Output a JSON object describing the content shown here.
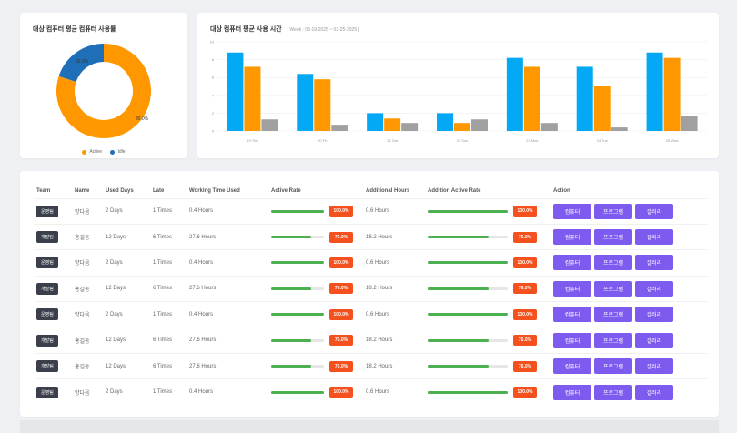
{
  "donut": {
    "title": "대상 컴퓨터 평균 컴퓨터 사용률",
    "active_label": "80.0%",
    "idle_label": "20.0%",
    "active_fraction": 0.8,
    "colors": {
      "active": "#ff9800",
      "idle": "#1e6fb8"
    },
    "legend": [
      {
        "name": "Active",
        "color": "#ff9800"
      },
      {
        "name": "Idle",
        "color": "#1e6fb8"
      }
    ]
  },
  "bars": {
    "title": "대상 컴퓨터 평균 사용 시간",
    "subtitle": "[ Week : 03-19-2025 ~ 03-25-2025 ]",
    "chart_data": {
      "type": "bar",
      "title": "대상 컴퓨터 평균 사용 시간",
      "categories": [
        "19 Thu",
        "20 Fri",
        "21 Sat",
        "22 Sun",
        "23 Mon",
        "24 Tue",
        "25 Wed"
      ],
      "ylim": [
        0,
        10
      ],
      "yticks": [
        "0",
        "2",
        "4",
        "6",
        "8",
        "10"
      ],
      "series": [
        {
          "values": [
            8.8,
            6.4,
            2.0,
            2.0,
            8.2,
            7.2,
            8.8
          ],
          "color": "#03a9f4"
        },
        {
          "values": [
            7.2,
            5.8,
            1.4,
            0.9,
            7.2,
            5.1,
            8.2
          ],
          "color": "#ff9800"
        },
        {
          "values": [
            1.3,
            0.7,
            0.9,
            1.3,
            0.9,
            0.4,
            1.7
          ],
          "color": "#a0a0a0"
        }
      ]
    }
  },
  "table": {
    "headers": [
      "Team",
      "Name",
      "Used Days",
      "Late",
      "Working Time Used",
      "Active Rate",
      "",
      "Additional Hours",
      "Addition Active Rate",
      "",
      "Action"
    ],
    "action_labels": [
      "컴퓨터",
      "프로그램",
      "갤러리"
    ],
    "rows": [
      {
        "team": "운영팀",
        "name": "양다음",
        "days": "2 Days",
        "late": "1 Times",
        "working": "0.4 Hours",
        "rate": 1.0,
        "rate_label": "100.0%",
        "additional": "0.6 Hours",
        "add_rate": 1.0,
        "add_rate_label": "100.0%"
      },
      {
        "team": "개발팀",
        "name": "홍길동",
        "days": "12 Days",
        "late": "6 Times",
        "working": "27.6 Hours",
        "rate": 0.76,
        "rate_label": "76.0%",
        "additional": "18.2 Hours",
        "add_rate": 0.76,
        "add_rate_label": "76.0%"
      },
      {
        "team": "운영팀",
        "name": "양다음",
        "days": "2 Days",
        "late": "1 Times",
        "working": "0.4 Hours",
        "rate": 1.0,
        "rate_label": "100.0%",
        "additional": "0.6 Hours",
        "add_rate": 1.0,
        "add_rate_label": "100.0%"
      },
      {
        "team": "개발팀",
        "name": "홍길동",
        "days": "12 Days",
        "late": "6 Times",
        "working": "27.6 Hours",
        "rate": 0.76,
        "rate_label": "76.0%",
        "additional": "18.2 Hours",
        "add_rate": 0.76,
        "add_rate_label": "76.0%"
      },
      {
        "team": "운영팀",
        "name": "양다음",
        "days": "2 Days",
        "late": "1 Times",
        "working": "0.4 Hours",
        "rate": 1.0,
        "rate_label": "100.0%",
        "additional": "0.6 Hours",
        "add_rate": 1.0,
        "add_rate_label": "100.0%"
      },
      {
        "team": "개발팀",
        "name": "홍길동",
        "days": "12 Days",
        "late": "6 Times",
        "working": "27.6 Hours",
        "rate": 0.76,
        "rate_label": "76.0%",
        "additional": "18.2 Hours",
        "add_rate": 0.76,
        "add_rate_label": "76.0%"
      },
      {
        "team": "개발팀",
        "name": "홍길동",
        "days": "12 Days",
        "late": "6 Times",
        "working": "27.6 Hours",
        "rate": 0.76,
        "rate_label": "76.0%",
        "additional": "18.2 Hours",
        "add_rate": 0.76,
        "add_rate_label": "76.0%"
      },
      {
        "team": "운영팀",
        "name": "양다음",
        "days": "2 Days",
        "late": "1 Times",
        "working": "0.4 Hours",
        "rate": 1.0,
        "rate_label": "100.0%",
        "additional": "0.6 Hours",
        "add_rate": 1.0,
        "add_rate_label": "100.0%"
      }
    ]
  }
}
